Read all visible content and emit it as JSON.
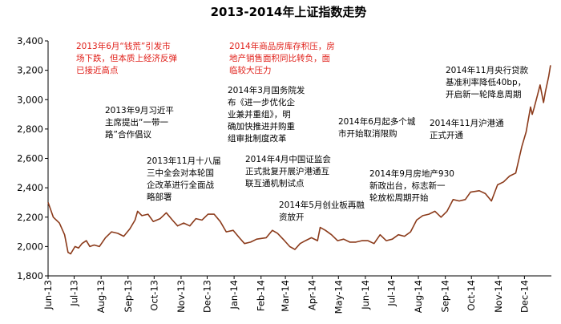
{
  "chart_data": {
    "type": "line",
    "title": "2013-2014年上证指数走势",
    "xlabel": "",
    "ylabel": "",
    "ylim": [
      1800,
      3400
    ],
    "yticks": [
      "1,800",
      "2,000",
      "2,200",
      "2,400",
      "2,600",
      "2,800",
      "3,000",
      "3,200",
      "3,400"
    ],
    "xtick_labels": [
      "Jun-13",
      "Jul-13",
      "Aug-13",
      "Sep-13",
      "Oct-13",
      "Nov-13",
      "Dec-13",
      "Jan-14",
      "Feb-14",
      "Mar-14",
      "Apr-14",
      "May-14",
      "Jun-14",
      "Jul-14",
      "Aug-14",
      "Sep-14",
      "Oct-14",
      "Nov-14",
      "Dec-14"
    ],
    "grid": false,
    "line_color": "#8b3a1a",
    "series": [
      {
        "name": "",
        "x": [
          "2013-06-01",
          "2013-06-04",
          "2013-06-07",
          "2013-06-14",
          "2013-06-20",
          "2013-06-24",
          "2013-06-27",
          "2013-07-02",
          "2013-07-06",
          "2013-07-10",
          "2013-07-15",
          "2013-07-19",
          "2013-07-24",
          "2013-07-30",
          "2013-08-06",
          "2013-08-13",
          "2013-08-20",
          "2013-08-27",
          "2013-09-03",
          "2013-09-09",
          "2013-09-12",
          "2013-09-17",
          "2013-09-24",
          "2013-09-30",
          "2013-10-08",
          "2013-10-15",
          "2013-10-22",
          "2013-10-28",
          "2013-11-04",
          "2013-11-11",
          "2013-11-18",
          "2013-11-25",
          "2013-12-02",
          "2013-12-09",
          "2013-12-16",
          "2013-12-23",
          "2013-12-31",
          "2014-01-07",
          "2014-01-13",
          "2014-01-20",
          "2014-01-27",
          "2014-02-07",
          "2014-02-14",
          "2014-02-20",
          "2014-02-28",
          "2014-03-06",
          "2014-03-12",
          "2014-03-18",
          "2014-03-24",
          "2014-03-31",
          "2014-04-07",
          "2014-04-10",
          "2014-04-16",
          "2014-04-23",
          "2014-04-30",
          "2014-05-07",
          "2014-05-14",
          "2014-05-21",
          "2014-05-28",
          "2014-06-04",
          "2014-06-11",
          "2014-06-18",
          "2014-06-25",
          "2014-07-02",
          "2014-07-09",
          "2014-07-16",
          "2014-07-23",
          "2014-07-30",
          "2014-08-06",
          "2014-08-13",
          "2014-08-20",
          "2014-08-27",
          "2014-09-03",
          "2014-09-10",
          "2014-09-17",
          "2014-09-24",
          "2014-09-30",
          "2014-10-10",
          "2014-10-17",
          "2014-10-24",
          "2014-10-31",
          "2014-11-07",
          "2014-11-14",
          "2014-11-21",
          "2014-11-28",
          "2014-12-03",
          "2014-12-08",
          "2014-12-10",
          "2014-12-12",
          "2014-12-16",
          "2014-12-19",
          "2014-12-23",
          "2014-12-25",
          "2014-12-29",
          "2014-12-31"
        ],
        "values": [
          2300,
          2250,
          2200,
          2160,
          2080,
          1960,
          1950,
          2000,
          1990,
          2020,
          2040,
          2000,
          2010,
          2000,
          2060,
          2100,
          2090,
          2070,
          2120,
          2180,
          2240,
          2210,
          2220,
          2170,
          2190,
          2230,
          2180,
          2140,
          2160,
          2140,
          2190,
          2180,
          2220,
          2220,
          2170,
          2100,
          2110,
          2060,
          2020,
          2030,
          2050,
          2060,
          2110,
          2090,
          2040,
          2000,
          1980,
          2020,
          2040,
          2060,
          2040,
          2130,
          2110,
          2080,
          2040,
          2050,
          2030,
          2030,
          2040,
          2040,
          2020,
          2080,
          2040,
          2050,
          2080,
          2070,
          2100,
          2180,
          2210,
          2220,
          2240,
          2200,
          2240,
          2320,
          2310,
          2320,
          2370,
          2380,
          2360,
          2310,
          2420,
          2440,
          2480,
          2500,
          2680,
          2780,
          2950,
          2900,
          2940,
          3030,
          3100,
          2980,
          3050,
          3160,
          3234
        ]
      }
    ],
    "annotations": [
      {
        "lines": [
          "2013年6月“钱荒”引发市",
          "场下跌，但本质上经济反弹",
          "已接近高点"
        ],
        "color": "red"
      },
      {
        "lines": [
          "2013年9月习近平",
          "主席提出“一带一",
          "路”合作倡议"
        ],
        "color": "black"
      },
      {
        "lines": [
          "2013年11月十八届",
          "三中全会对本轮国",
          "企改革进行全面战",
          "略部署"
        ],
        "color": "black"
      },
      {
        "lines": [
          "2014年商品房库存积压，房",
          "地产销售面积同比转负，面",
          "临较大压力"
        ],
        "color": "red"
      },
      {
        "lines": [
          "2014年3月国务院发",
          "布《进一步优化企",
          "业兼并重组》，明",
          "确加快推进并购重",
          "组审批制度改革"
        ],
        "color": "black"
      },
      {
        "lines": [
          "2014年4月中国证监会",
          "正式批复开展沪港通互",
          "联互通机制试点"
        ],
        "color": "black"
      },
      {
        "lines": [
          "2014年5月创业板再融",
          "资放开"
        ],
        "color": "black"
      },
      {
        "lines": [
          "2014年6月起多个城",
          "市开始取消限购"
        ],
        "color": "black"
      },
      {
        "lines": [
          "2014年9月房地产930",
          "新政出台，标志新一",
          "轮放松周期开始"
        ],
        "color": "black"
      },
      {
        "lines": [
          "2014年11月沪港通",
          "正式开通"
        ],
        "color": "black"
      },
      {
        "lines": [
          "2014年11月央行贷款",
          "基准利率降低40bp，",
          "开启新一轮降息周期"
        ],
        "color": "black"
      }
    ]
  }
}
